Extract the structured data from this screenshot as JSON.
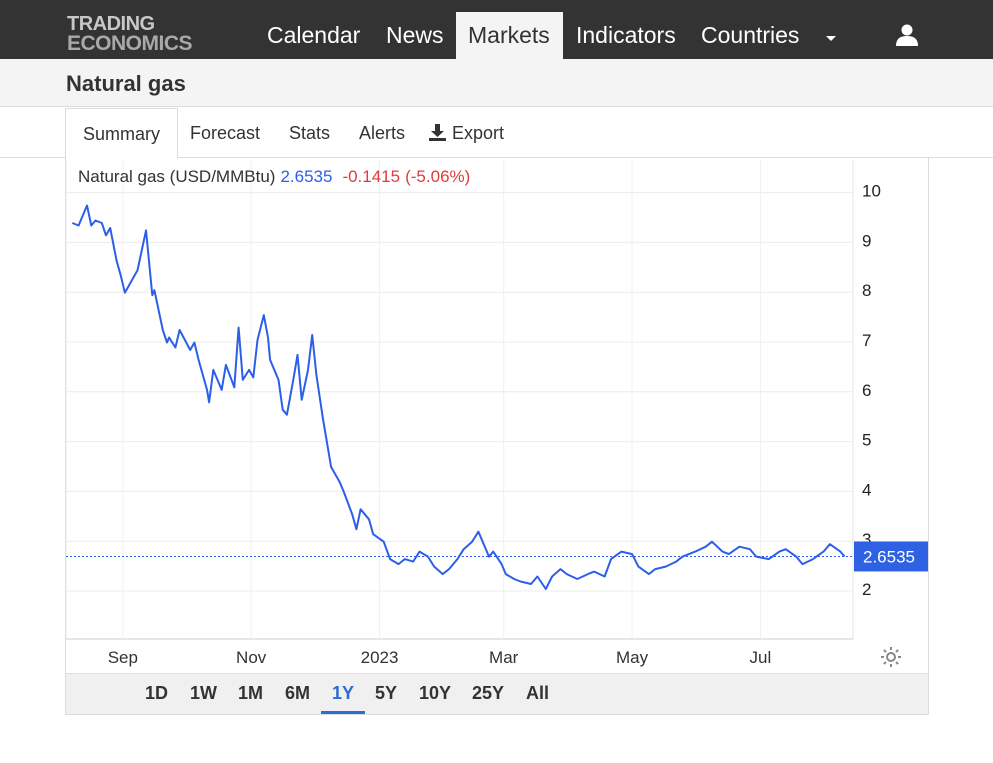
{
  "brand": {
    "line1": "TRADING",
    "line2": "ECONOMICS"
  },
  "nav": {
    "items": [
      "Calendar",
      "News",
      "Markets",
      "Indicators",
      "Countries"
    ],
    "active": "Markets"
  },
  "page": {
    "title": "Natural gas"
  },
  "tabs": {
    "summary": "Summary",
    "forecast": "Forecast",
    "stats": "Stats",
    "alerts": "Alerts",
    "export": "Export"
  },
  "quote": {
    "name": "Natural gas (USD/MMBtu)",
    "price": "2.6535",
    "change": "-0.1415",
    "change_pct": "(-5.06%)"
  },
  "ranges": {
    "items": [
      "1D",
      "1W",
      "1M",
      "6M",
      "1Y",
      "5Y",
      "10Y",
      "25Y",
      "All"
    ],
    "active": "1Y"
  },
  "colors": {
    "line": "#2c5fe8",
    "negative": "#e03c3c",
    "price_label_bg": "#2f62e3",
    "topbar": "#333333"
  },
  "icons": {
    "user": "user-icon",
    "export": "download-icon",
    "settings": "gear-icon",
    "dropdown": "caret-down-icon"
  },
  "chart_data": {
    "type": "line",
    "title": "Natural gas (USD/MMBtu)",
    "x_ticks": [
      "Sep",
      "Nov",
      "2023",
      "Mar",
      "May",
      "Jul"
    ],
    "y_ticks": [
      2,
      3,
      4,
      5,
      6,
      7,
      8,
      9,
      10
    ],
    "ylim": [
      1,
      10
    ],
    "y_axis_position": "right",
    "grid": true,
    "last_value": 2.6535,
    "last_value_label": "2.6535",
    "series": [
      {
        "x": [
          "2022-08-08",
          "2022-08-11",
          "2022-08-15",
          "2022-08-17",
          "2022-08-19",
          "2022-08-22",
          "2022-08-24",
          "2022-08-26",
          "2022-08-29",
          "2022-08-31",
          "2022-09-02",
          "2022-09-06",
          "2022-09-08",
          "2022-09-12",
          "2022-09-15",
          "2022-09-16",
          "2022-09-20",
          "2022-09-22",
          "2022-09-23",
          "2022-09-26",
          "2022-09-28",
          "2022-10-03",
          "2022-10-05",
          "2022-10-07",
          "2022-10-11",
          "2022-10-12",
          "2022-10-14",
          "2022-10-18",
          "2022-10-20",
          "2022-10-24",
          "2022-10-26",
          "2022-10-28",
          "2022-10-31",
          "2022-11-02",
          "2022-11-04",
          "2022-11-07",
          "2022-11-09",
          "2022-11-10",
          "2022-11-14",
          "2022-11-16",
          "2022-11-18",
          "2022-11-21",
          "2022-11-23",
          "2022-11-25",
          "2022-11-28",
          "2022-11-30",
          "2022-12-02",
          "2022-12-05",
          "2022-12-07",
          "2022-12-09",
          "2022-12-13",
          "2022-12-15",
          "2022-12-19",
          "2022-12-21",
          "2022-12-23",
          "2022-12-27",
          "2022-12-29",
          "2023-01-03",
          "2023-01-06",
          "2023-01-10",
          "2023-01-13",
          "2023-01-17",
          "2023-01-20",
          "2023-01-24",
          "2023-01-27",
          "2023-01-31",
          "2023-02-03",
          "2023-02-07",
          "2023-02-10",
          "2023-02-14",
          "2023-02-17",
          "2023-02-22",
          "2023-02-24",
          "2023-02-28",
          "2023-03-02",
          "2023-03-06",
          "2023-03-09",
          "2023-03-14",
          "2023-03-17",
          "2023-03-21",
          "2023-03-24",
          "2023-03-28",
          "2023-03-31",
          "2023-04-05",
          "2023-04-10",
          "2023-04-13",
          "2023-04-18",
          "2023-04-21",
          "2023-04-26",
          "2023-05-01",
          "2023-05-04",
          "2023-05-09",
          "2023-05-12",
          "2023-05-17",
          "2023-05-22",
          "2023-05-25",
          "2023-05-31",
          "2023-06-05",
          "2023-06-08",
          "2023-06-13",
          "2023-06-16",
          "2023-06-21",
          "2023-06-26",
          "2023-06-29",
          "2023-07-05",
          "2023-07-10",
          "2023-07-13",
          "2023-07-18",
          "2023-07-21",
          "2023-07-26",
          "2023-07-31",
          "2023-08-03",
          "2023-08-08",
          "2023-08-10"
        ],
        "y": [
          9.35,
          9.3,
          9.7,
          9.3,
          9.4,
          9.35,
          9.1,
          9.25,
          8.6,
          8.3,
          7.95,
          8.25,
          8.4,
          9.2,
          7.9,
          8.0,
          7.2,
          6.95,
          7.05,
          6.85,
          7.2,
          6.8,
          6.95,
          6.6,
          6.0,
          5.75,
          6.4,
          6.0,
          6.5,
          6.05,
          7.25,
          6.2,
          6.4,
          6.25,
          7.0,
          7.5,
          7.05,
          6.6,
          6.2,
          5.6,
          5.5,
          6.2,
          6.7,
          5.8,
          6.4,
          7.1,
          6.3,
          5.45,
          4.95,
          4.45,
          4.15,
          3.95,
          3.5,
          3.2,
          3.6,
          3.4,
          3.1,
          2.95,
          2.6,
          2.5,
          2.6,
          2.55,
          2.75,
          2.65,
          2.45,
          2.3,
          2.4,
          2.6,
          2.8,
          2.95,
          3.15,
          2.65,
          2.75,
          2.5,
          2.3,
          2.2,
          2.15,
          2.1,
          2.25,
          2.0,
          2.25,
          2.4,
          2.3,
          2.2,
          2.3,
          2.35,
          2.25,
          2.6,
          2.75,
          2.7,
          2.45,
          2.3,
          2.4,
          2.45,
          2.55,
          2.65,
          2.75,
          2.85,
          2.95,
          2.75,
          2.7,
          2.85,
          2.8,
          2.65,
          2.6,
          2.75,
          2.8,
          2.65,
          2.5,
          2.6,
          2.75,
          2.9,
          2.75,
          2.6535
        ]
      }
    ]
  }
}
